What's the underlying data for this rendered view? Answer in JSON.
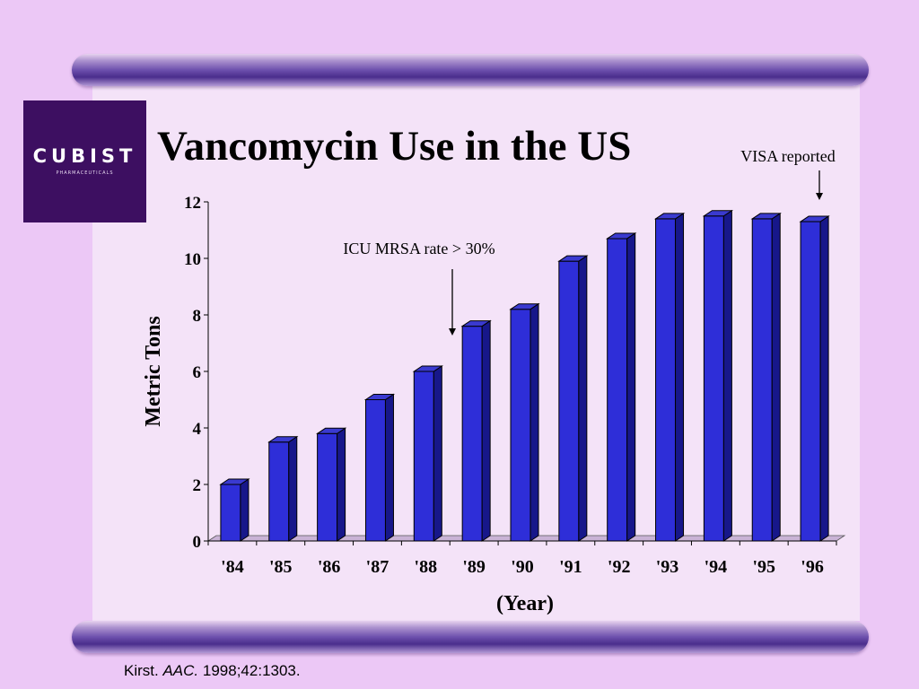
{
  "slide": {
    "title": "Vancomycin Use in the US",
    "logo": {
      "name": "CUBIST",
      "subtitle": "PHARMACEUTICALS"
    },
    "citation": {
      "author": "Kirst.",
      "journal": "AAC.",
      "ref": "1998;42:1303."
    }
  },
  "colors": {
    "background": "#ecc8f6",
    "panel": "#f4e3f8",
    "bar_front": "#2e2ed8",
    "bar_side": "#17178a",
    "logo": "#3d0f61"
  },
  "chart_data": {
    "type": "bar",
    "title": "Vancomycin Use in the US",
    "xlabel": "(Year)",
    "ylabel": "Metric Tons",
    "categories": [
      "'84",
      "'85",
      "'86",
      "'87",
      "'88",
      "'89",
      "'90",
      "'91",
      "'92",
      "'93",
      "'94",
      "'95",
      "'96"
    ],
    "values": [
      2.0,
      3.5,
      3.8,
      5.0,
      6.0,
      7.6,
      8.2,
      9.9,
      10.7,
      11.4,
      11.5,
      11.4,
      11.3
    ],
    "ylim": [
      0,
      12
    ],
    "yticks": [
      0,
      2,
      4,
      6,
      8,
      10,
      12
    ],
    "grid": false,
    "annotations": [
      {
        "text": "ICU MRSA rate > 30%",
        "category": "'89"
      },
      {
        "text": "VISA reported",
        "category": "'96"
      }
    ]
  }
}
